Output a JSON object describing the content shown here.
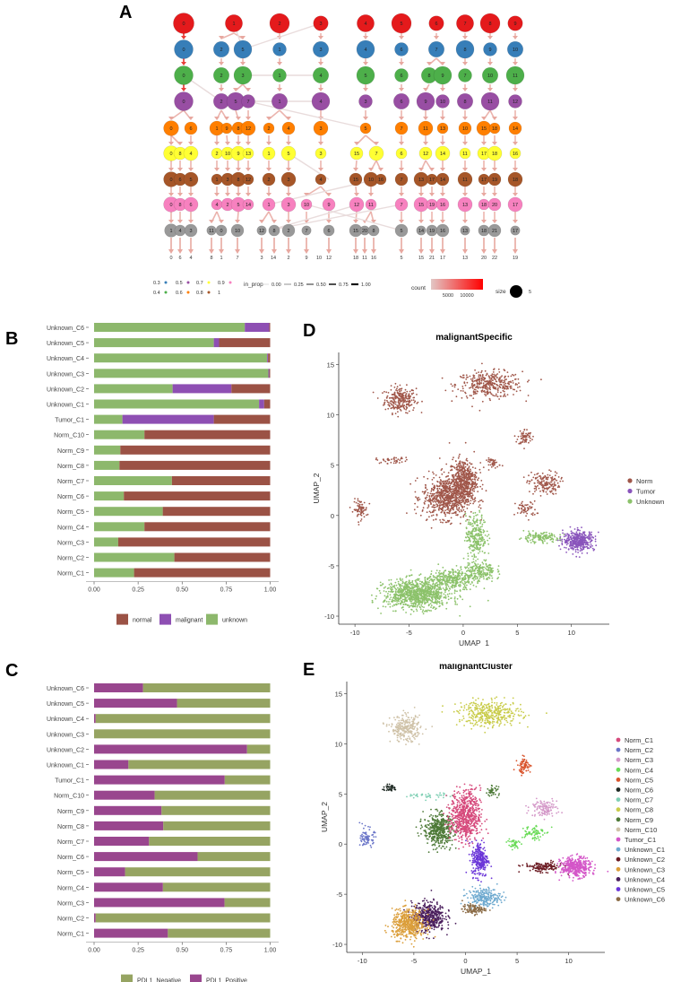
{
  "panels": {
    "A": {
      "letter": "A"
    },
    "B": {
      "letter": "B"
    },
    "C": {
      "letter": "C"
    },
    "D": {
      "letter": "D"
    },
    "E": {
      "letter": "E"
    }
  },
  "chart_data": [
    {
      "id": "A",
      "type": "clustree",
      "title": "",
      "resolution_levels": [
        "0.3",
        "0.4",
        "0.5",
        "0.6",
        "0.7",
        "0.8",
        "0.9",
        "1"
      ],
      "level_colors": [
        "#E41A1C",
        "#377EB8",
        "#4DAF4A",
        "#984EA3",
        "#FF7F00",
        "#FFFF33",
        "#A65628",
        "#F781BF",
        "#999999"
      ],
      "rows": [
        [
          "0",
          "1",
          "2",
          "3",
          "4",
          "5",
          "6",
          "7",
          "8",
          "9"
        ],
        [
          "0",
          "2",
          "5",
          "1",
          "3",
          "4",
          "6",
          "7",
          "8",
          "9",
          "10"
        ],
        [
          "0",
          "2",
          "3",
          "1",
          "4",
          "5",
          "6",
          "8",
          "9",
          "7",
          "10",
          "11"
        ],
        [
          "0",
          "2",
          "5",
          "7",
          "1",
          "4",
          "3",
          "6",
          "9",
          "10",
          "8",
          "11",
          "12"
        ],
        [
          "0",
          "6",
          "1",
          "9",
          "8",
          "12",
          "2",
          "4",
          "3",
          "5",
          "7",
          "11",
          "13",
          "10",
          "15",
          "18",
          "14"
        ],
        [
          "0",
          "8",
          "4",
          "2",
          "10",
          "9",
          "13",
          "1",
          "5",
          "3",
          "15",
          "7",
          "6",
          "12",
          "14",
          "11",
          "17",
          "18",
          "16"
        ],
        [
          "0",
          "6",
          "5",
          "1",
          "3",
          "8",
          "12",
          "2",
          "3",
          "4",
          "15",
          "10",
          "16",
          "7",
          "13",
          "17",
          "14",
          "11",
          "17",
          "19",
          "18"
        ],
        [
          "0",
          "8",
          "6",
          "4",
          "2",
          "5",
          "14",
          "1",
          "3",
          "10",
          "9",
          "12",
          "11",
          "7",
          "15",
          "19",
          "16",
          "13",
          "18",
          "20",
          "17"
        ],
        [
          "1",
          "4",
          "3",
          "11",
          "0",
          "10",
          "12",
          "8",
          "2",
          "7",
          "6",
          "15",
          "20",
          "8",
          "5",
          "14",
          "19",
          "16",
          "13",
          "18",
          "21",
          "17"
        ]
      ],
      "final_labels": [
        "0",
        "6",
        "4",
        "8",
        "1",
        "7",
        "3",
        "14",
        "2",
        "9",
        "10",
        "12",
        "18",
        "11",
        "16",
        "5",
        "15",
        "21",
        "17",
        "13",
        "20",
        "22",
        "19"
      ],
      "legend": {
        "resolution_title": "",
        "resolution_items": [
          "0.3",
          "0.4",
          "0.5",
          "0.6",
          "0.7",
          "0.8",
          "0.9",
          "1"
        ],
        "in_prop_title": "in_prop",
        "in_prop_items": [
          "0.00",
          "0.25",
          "0.50",
          "0.75",
          "1.00"
        ],
        "count_title": "count",
        "count_ticks": [
          "5000",
          "10000"
        ],
        "size_title": "size",
        "size_value": "5"
      }
    },
    {
      "id": "B",
      "type": "bar",
      "orientation": "horizontal-stacked",
      "title": "",
      "categories": [
        "Unknown_C6",
        "Unknown_C5",
        "Unknown_C4",
        "Unknown_C3",
        "Unknown_C2",
        "Unknown_C1",
        "Tumor_C1",
        "Norm_C10",
        "Norm_C9",
        "Norm_C8",
        "Norm_C7",
        "Norm_C6",
        "Norm_C5",
        "Norm_C4",
        "Norm_C3",
        "Norm_C2",
        "Norm_C1"
      ],
      "series": [
        {
          "name": "unknown",
          "color": "#8DB86C",
          "values": [
            0.856,
            0.68,
            0.983,
            0.99,
            0.446,
            0.937,
            0.161,
            0.286,
            0.149,
            0.144,
            0.442,
            0.169,
            0.39,
            0.286,
            0.137,
            0.456,
            0.227
          ]
        },
        {
          "name": "malignant",
          "color": "#8E4FB3",
          "values": [
            0.139,
            0.03,
            0.005,
            0.005,
            0.334,
            0.029,
            0.519,
            0,
            0,
            0,
            0,
            0,
            0,
            0,
            0,
            0,
            0
          ]
        },
        {
          "name": "normal",
          "color": "#9B5245",
          "values": [
            0.005,
            0.29,
            0.012,
            0.005,
            0.22,
            0.034,
            0.32,
            0.714,
            0.851,
            0.856,
            0.558,
            0.831,
            0.61,
            0.714,
            0.863,
            0.544,
            0.773
          ]
        }
      ],
      "xticks": [
        "0.00",
        "0.25",
        "0.50",
        "0.75",
        "1.00"
      ],
      "xlim": [
        0,
        1
      ],
      "xlabel": "",
      "ylabel": "",
      "legend_order": [
        "normal",
        "malignant",
        "unknown"
      ],
      "legend_position": "bottom"
    },
    {
      "id": "C",
      "type": "bar",
      "orientation": "horizontal-stacked",
      "title": "",
      "categories": [
        "Unknown_C6",
        "Unknown_C5",
        "Unknown_C4",
        "Unknown_C3",
        "Unknown_C2",
        "Unknown_C1",
        "Tumor_C1",
        "Norm_C10",
        "Norm_C9",
        "Norm_C8",
        "Norm_C7",
        "Norm_C6",
        "Norm_C5",
        "Norm_C4",
        "Norm_C3",
        "Norm_C2",
        "Norm_C1"
      ],
      "series": [
        {
          "name": "PDL1_Positive",
          "color": "#99468E",
          "values": [
            0.278,
            0.471,
            0.009,
            0,
            0.869,
            0.195,
            0.742,
            0.344,
            0.383,
            0.393,
            0.312,
            0.588,
            0.176,
            0.391,
            0.741,
            0.009,
            0.419
          ]
        },
        {
          "name": "PDL1_Negative",
          "color": "#96A462",
          "values": [
            0.722,
            0.529,
            0.991,
            1,
            0.131,
            0.805,
            0.258,
            0.656,
            0.617,
            0.607,
            0.688,
            0.412,
            0.824,
            0.609,
            0.259,
            0.991,
            0.581
          ]
        }
      ],
      "xticks": [
        "0.00",
        "0.25",
        "0.50",
        "0.75",
        "1.00"
      ],
      "xlim": [
        0,
        1
      ],
      "xlabel": "",
      "ylabel": "",
      "legend_order": [
        "PDL1_Negative",
        "PDL1_Positive"
      ],
      "legend_position": "bottom"
    },
    {
      "id": "D",
      "type": "scatter",
      "title": "malignantSpecific",
      "xlabel": "UMAP_1",
      "ylabel": "UMAP_2",
      "xlim": [
        -11.5,
        13.5
      ],
      "ylim": [
        -10.8,
        16.2
      ],
      "xticks": [
        -10,
        -5,
        0,
        5,
        10
      ],
      "yticks": [
        -10,
        -5,
        0,
        5,
        10,
        15
      ],
      "legend_position": "right",
      "groups": [
        {
          "name": "Norm",
          "color": "#A0574A"
        },
        {
          "name": "Tumor",
          "color": "#8A55BC"
        },
        {
          "name": "Unknown",
          "color": "#8CC26B"
        }
      ],
      "clusters": [
        {
          "group": "Norm",
          "cx": -5.8,
          "cy": 11.5,
          "sx": 0.9,
          "sy": 0.8,
          "n": 260
        },
        {
          "group": "Norm",
          "cx": 2.4,
          "cy": 13.0,
          "sx": 1.9,
          "sy": 0.8,
          "n": 380
        },
        {
          "group": "Norm",
          "cx": 5.7,
          "cy": 7.8,
          "sx": 0.4,
          "sy": 0.5,
          "n": 70
        },
        {
          "group": "Norm",
          "cx": 7.5,
          "cy": 3.2,
          "sx": 0.9,
          "sy": 0.7,
          "n": 160
        },
        {
          "group": "Norm",
          "cx": 5.8,
          "cy": 0.6,
          "sx": 0.6,
          "sy": 0.5,
          "n": 60
        },
        {
          "group": "Norm",
          "cx": -6.5,
          "cy": 5.5,
          "sx": 1.0,
          "sy": 0.2,
          "n": 40
        },
        {
          "group": "Norm",
          "cx": -9.5,
          "cy": 0.6,
          "sx": 0.4,
          "sy": 0.6,
          "n": 80
        },
        {
          "group": "Norm",
          "cx": 2.8,
          "cy": 5.2,
          "sx": 0.4,
          "sy": 0.3,
          "n": 40
        },
        {
          "group": "Norm",
          "cx": -1.5,
          "cy": 1.8,
          "sx": 1.4,
          "sy": 1.3,
          "n": 700
        },
        {
          "group": "Norm",
          "cx": 0.0,
          "cy": 3.5,
          "sx": 0.8,
          "sy": 1.3,
          "n": 500
        },
        {
          "group": "Unknown",
          "cx": 1.2,
          "cy": -2.0,
          "sx": 0.6,
          "sy": 1.3,
          "n": 260
        },
        {
          "group": "Unknown",
          "cx": 1.5,
          "cy": -5.5,
          "sx": 0.9,
          "sy": 0.7,
          "n": 200
        },
        {
          "group": "Unknown",
          "cx": -4.2,
          "cy": -7.8,
          "sx": 1.9,
          "sy": 0.9,
          "n": 1000
        },
        {
          "group": "Unknown",
          "cx": -1.0,
          "cy": -6.3,
          "sx": 1.3,
          "sy": 0.6,
          "n": 300
        },
        {
          "group": "Unknown",
          "cx": 7.0,
          "cy": -2.2,
          "sx": 1.2,
          "sy": 0.3,
          "n": 140
        },
        {
          "group": "Tumor",
          "cx": 10.7,
          "cy": -2.5,
          "sx": 0.9,
          "sy": 0.6,
          "n": 400
        }
      ]
    },
    {
      "id": "E",
      "type": "scatter",
      "title": "malignantCluster",
      "xlabel": "UMAP_1",
      "ylabel": "UMAP_2",
      "xlim": [
        -11.5,
        13.5
      ],
      "ylim": [
        -10.8,
        16.2
      ],
      "xticks": [
        -10,
        -5,
        0,
        5,
        10
      ],
      "yticks": [
        -10,
        -5,
        0,
        5,
        10,
        15
      ],
      "legend_position": "right",
      "groups": [
        {
          "name": "Norm_C1",
          "color": "#D64A7C"
        },
        {
          "name": "Norm_C2",
          "color": "#6A75C8"
        },
        {
          "name": "Norm_C3",
          "color": "#D498C8"
        },
        {
          "name": "Norm_C4",
          "color": "#6ADB58"
        },
        {
          "name": "Norm_C5",
          "color": "#D9542C"
        },
        {
          "name": "Norm_C6",
          "color": "#1F2A24"
        },
        {
          "name": "Norm_C7",
          "color": "#7FCFB4"
        },
        {
          "name": "Norm_C8",
          "color": "#C9CC4A"
        },
        {
          "name": "Norm_C9",
          "color": "#4E7A38"
        },
        {
          "name": "Norm_C10",
          "color": "#CFC2A8"
        },
        {
          "name": "Tumor_C1",
          "color": "#D456C8"
        },
        {
          "name": "Unknown_C1",
          "color": "#6DA9CF"
        },
        {
          "name": "Unknown_C2",
          "color": "#6B1A22"
        },
        {
          "name": "Unknown_C3",
          "color": "#DB9E3A"
        },
        {
          "name": "Unknown_C4",
          "color": "#4A1E5C"
        },
        {
          "name": "Unknown_C5",
          "color": "#6A35D8"
        },
        {
          "name": "Unknown_C6",
          "color": "#8A6A44"
        }
      ],
      "clusters": [
        {
          "group": "Norm_C10",
          "cx": -5.8,
          "cy": 11.5,
          "sx": 0.9,
          "sy": 0.8,
          "n": 260
        },
        {
          "group": "Norm_C8",
          "cx": 2.4,
          "cy": 13.0,
          "sx": 1.9,
          "sy": 0.8,
          "n": 380
        },
        {
          "group": "Norm_C5",
          "cx": 5.7,
          "cy": 7.8,
          "sx": 0.4,
          "sy": 0.5,
          "n": 70
        },
        {
          "group": "Norm_C3",
          "cx": 7.6,
          "cy": 3.6,
          "sx": 0.8,
          "sy": 0.5,
          "n": 120
        },
        {
          "group": "Norm_C4",
          "cx": 6.5,
          "cy": 1.2,
          "sx": 0.7,
          "sy": 0.5,
          "n": 70
        },
        {
          "group": "Norm_C4",
          "cx": 4.6,
          "cy": 0.0,
          "sx": 0.4,
          "sy": 0.4,
          "n": 40
        },
        {
          "group": "Norm_C6",
          "cx": -7.3,
          "cy": 5.6,
          "sx": 0.5,
          "sy": 0.2,
          "n": 40
        },
        {
          "group": "Norm_C7",
          "cx": -3.5,
          "cy": 4.8,
          "sx": 1.3,
          "sy": 0.2,
          "n": 40
        },
        {
          "group": "Norm_C2",
          "cx": -9.5,
          "cy": 0.6,
          "sx": 0.4,
          "sy": 0.6,
          "n": 80
        },
        {
          "group": "Norm_C9",
          "cx": 2.6,
          "cy": 5.3,
          "sx": 0.4,
          "sy": 0.3,
          "n": 40
        },
        {
          "group": "Norm_C9",
          "cx": -2.6,
          "cy": 1.4,
          "sx": 0.9,
          "sy": 1.0,
          "n": 450
        },
        {
          "group": "Norm_C1",
          "cx": 0.0,
          "cy": 2.8,
          "sx": 0.9,
          "sy": 1.6,
          "n": 650
        },
        {
          "group": "Unknown_C5",
          "cx": 1.4,
          "cy": -1.5,
          "sx": 0.5,
          "sy": 1.1,
          "n": 260
        },
        {
          "group": "Unknown_C1",
          "cx": 1.8,
          "cy": -5.3,
          "sx": 1.0,
          "sy": 0.6,
          "n": 220
        },
        {
          "group": "Unknown_C6",
          "cx": 0.8,
          "cy": -6.5,
          "sx": 0.7,
          "sy": 0.3,
          "n": 100
        },
        {
          "group": "Unknown_C4",
          "cx": -3.6,
          "cy": -7.2,
          "sx": 1.0,
          "sy": 0.9,
          "n": 450
        },
        {
          "group": "Unknown_C3",
          "cx": -5.5,
          "cy": -8.0,
          "sx": 1.0,
          "sy": 0.9,
          "n": 500
        },
        {
          "group": "Unknown_C2",
          "cx": 7.5,
          "cy": -2.3,
          "sx": 1.2,
          "sy": 0.3,
          "n": 140
        },
        {
          "group": "Tumor_C1",
          "cx": 10.7,
          "cy": -2.3,
          "sx": 0.9,
          "sy": 0.6,
          "n": 400
        }
      ]
    }
  ]
}
